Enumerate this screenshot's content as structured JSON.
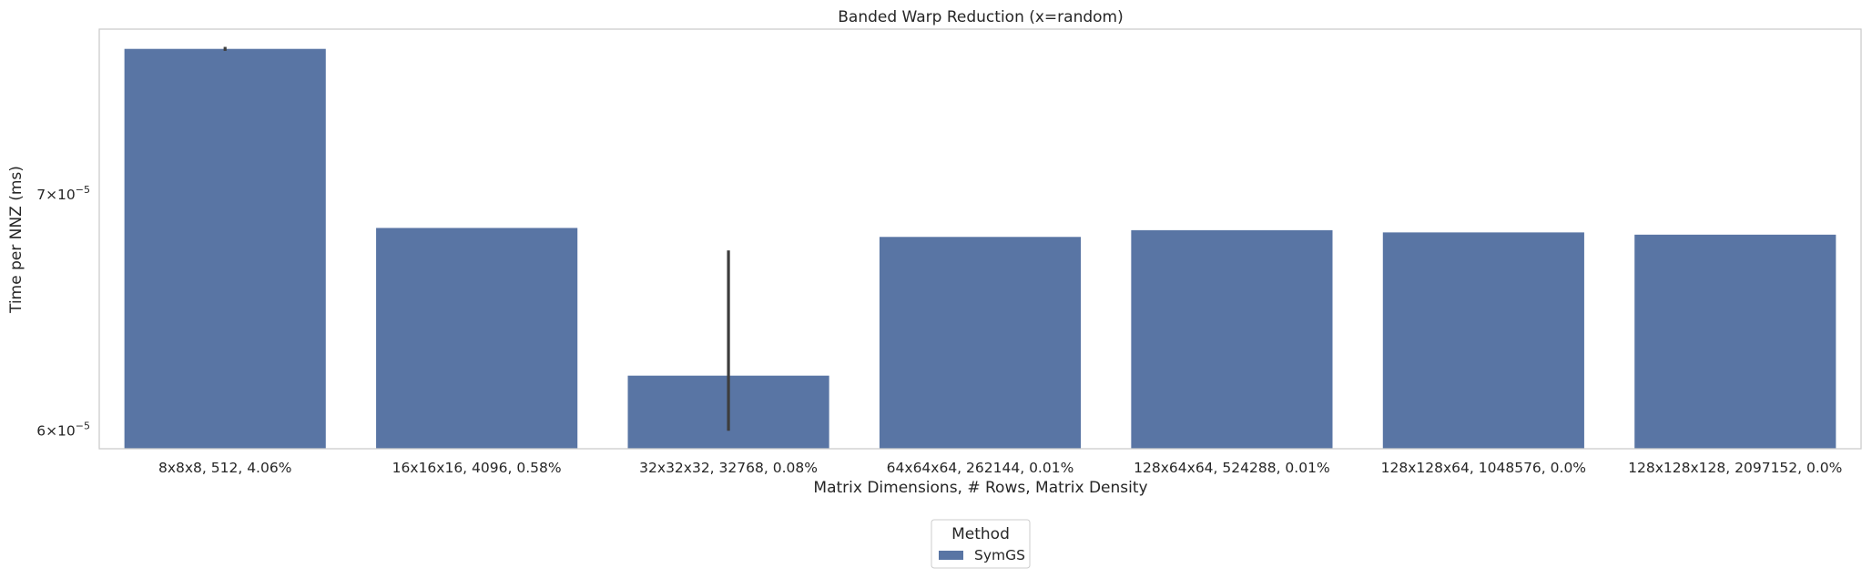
{
  "chart_data": {
    "type": "bar",
    "title": "Banded Warp Reduction (x=random)",
    "xlabel": "Matrix Dimensions, # Rows, Matrix Density",
    "ylabel": "Time per NNZ (ms)",
    "yscale": "log",
    "ylim": [
      5.93e-05,
      7.8e-05
    ],
    "yticks": [
      {
        "value": 6e-05,
        "base": "6×10",
        "exp": "−5"
      },
      {
        "value": 7e-05,
        "base": "7×10",
        "exp": "−5"
      }
    ],
    "grid": false,
    "legend": {
      "title": "Method",
      "placement": "bottom-center"
    },
    "categories": [
      "8x8x8, 512, 4.06%",
      "16x16x16, 4096, 0.58%",
      "32x32x32, 32768, 0.08%",
      "64x64x64, 262144, 0.01%",
      "128x64x64, 524288, 0.01%",
      "128x128x64, 1048576, 0.0%",
      "128x128x128, 2097152, 0.0%"
    ],
    "series": [
      {
        "name": "SymGS",
        "color": "#5975a4",
        "values": [
          7.7e-05,
          6.85e-05,
          6.22e-05,
          6.81e-05,
          6.84e-05,
          6.83e-05,
          6.82e-05
        ],
        "error_low": [
          7.69e-05,
          null,
          6e-05,
          null,
          null,
          null,
          null
        ],
        "error_high": [
          7.71e-05,
          null,
          6.75e-05,
          null,
          null,
          null,
          null
        ]
      }
    ]
  }
}
